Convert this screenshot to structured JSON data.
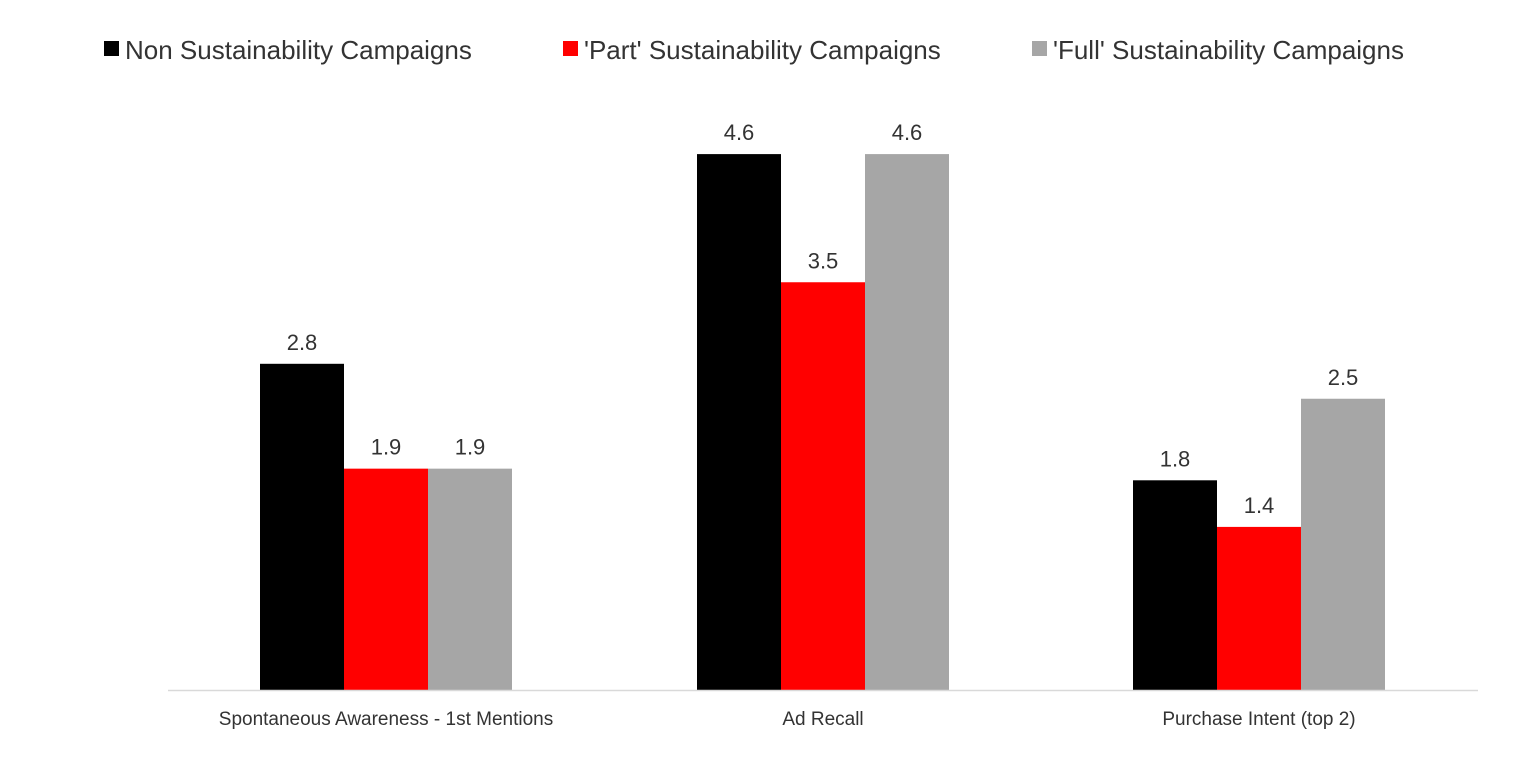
{
  "chart_data": {
    "type": "bar",
    "categories": [
      "Spontaneous Awareness - 1st Mentions",
      "Ad Recall",
      "Purchase Intent (top 2)"
    ],
    "series": [
      {
        "name": "Non Sustainability Campaigns",
        "values": [
          2.8,
          4.6,
          1.8
        ],
        "color": "#000000"
      },
      {
        "name": "'Part' Sustainability Campaigns",
        "values": [
          1.9,
          3.5,
          1.4
        ],
        "color": "#ff0000"
      },
      {
        "name": "'Full' Sustainability Campaigns",
        "values": [
          1.9,
          4.6,
          2.5
        ],
        "color": "#a6a6a6"
      }
    ],
    "legend_position": "top",
    "grid": false,
    "ylim": [
      0,
      5
    ],
    "axis_color": "#d9d9d9"
  }
}
